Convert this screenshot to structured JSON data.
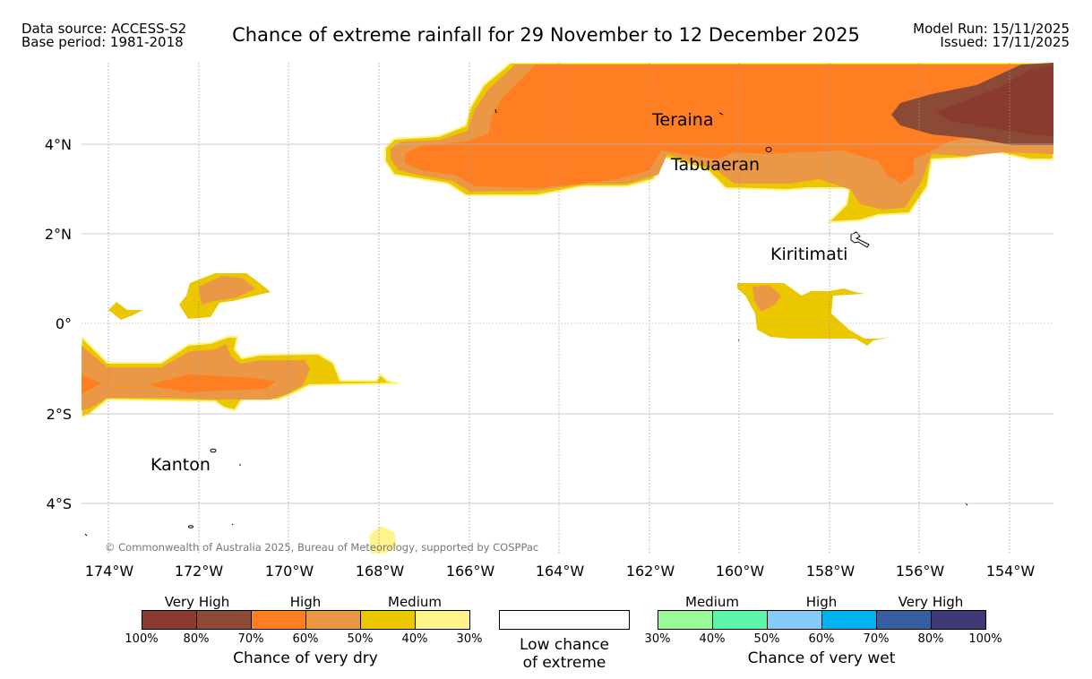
{
  "header": {
    "data_source": "Data source: ACCESS-S2",
    "base_period": "Base period: 1981-2018",
    "title": "Chance of extreme rainfall for 29 November to 12 December 2025",
    "model_run": "Model Run: 15/11/2025",
    "issued": "Issued: 17/11/2025"
  },
  "map": {
    "copyright": "© Commonwealth of Australia 2025, Bureau of Meteorology, supported by COSPPac",
    "lon_labels": [
      "174°W",
      "172°W",
      "170°W",
      "168°W",
      "166°W",
      "164°W",
      "162°W",
      "160°W",
      "158°W",
      "156°W",
      "154°W"
    ],
    "lat_labels": [
      "4°N",
      "2°N",
      "0°",
      "2°S",
      "4°S"
    ],
    "places": [
      {
        "name": "Teraina"
      },
      {
        "name": "Tabuaeran"
      },
      {
        "name": "Kiritimati"
      },
      {
        "name": "Kanton"
      }
    ]
  },
  "legend": {
    "dry": {
      "categories": [
        "Very High",
        "High",
        "Medium"
      ],
      "colors": [
        "#8B3A2F",
        "#8A4A35",
        "#FF7E21",
        "#EB9846",
        "#EBC700",
        "#FFF48C"
      ],
      "ticks": [
        "100%",
        "80%",
        "70%",
        "60%",
        "50%",
        "40%",
        "30%"
      ],
      "title": "Chance of very dry"
    },
    "low": {
      "line1": "Low chance",
      "line2": "of extreme"
    },
    "wet": {
      "categories": [
        "Medium",
        "High",
        "Very High"
      ],
      "colors": [
        "#9AFA98",
        "#5AF5A8",
        "#86CAF9",
        "#00B2F0",
        "#375E9E",
        "#3E3A75"
      ],
      "ticks": [
        "30%",
        "40%",
        "50%",
        "60%",
        "70%",
        "80%",
        "100%"
      ],
      "title": "Chance of very wet"
    }
  }
}
